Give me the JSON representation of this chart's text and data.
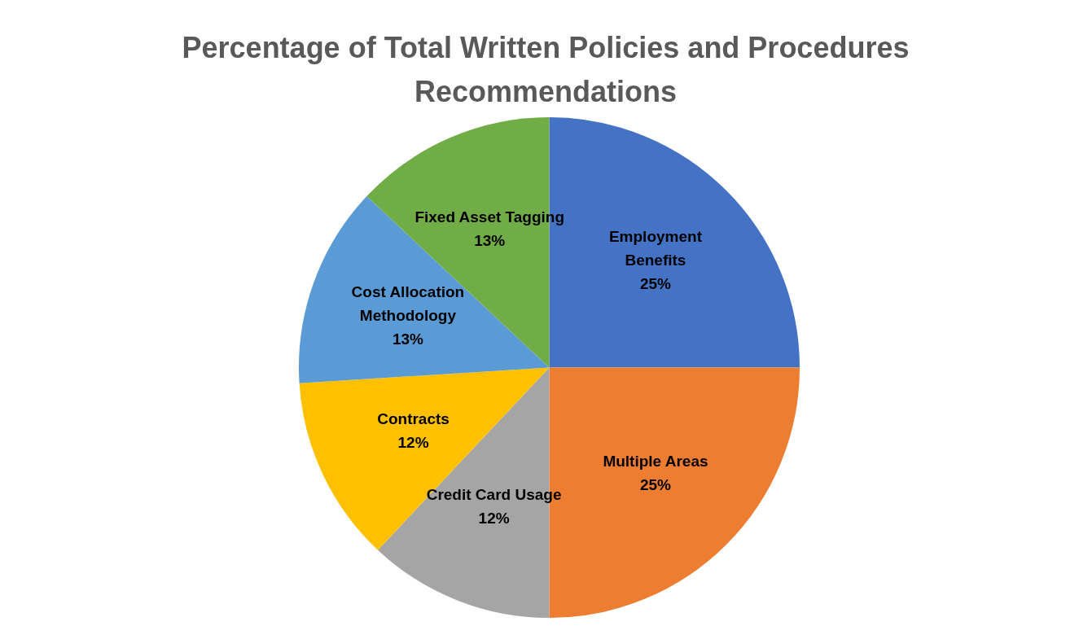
{
  "chart_data": {
    "type": "pie",
    "title": "Percentage of Total Written Policies and Procedures Recommendations",
    "categories": [
      "Employment Benefits",
      "Multiple Areas",
      "Credit Card Usage",
      "Contracts",
      "Cost Allocation Methodology",
      "Fixed Asset Tagging"
    ],
    "values": [
      25,
      25,
      12,
      12,
      13,
      13
    ],
    "value_labels": [
      "25%",
      "25%",
      "12%",
      "12%",
      "13%",
      "13%"
    ],
    "colors": [
      "#4472c4",
      "#ed7d31",
      "#a5a5a5",
      "#ffc000",
      "#5b9bd5",
      "#70ad47"
    ],
    "legend": false
  }
}
